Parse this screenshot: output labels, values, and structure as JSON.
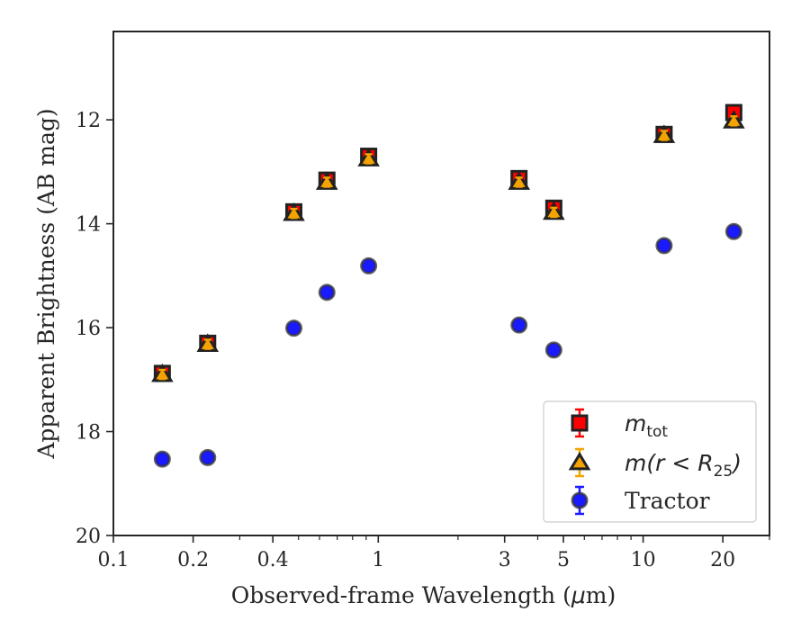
{
  "chart_data": {
    "type": "scatter",
    "xlabel": "Observed-frame Wavelength (μm)",
    "xlabel_parts": [
      "Observed-frame Wavelength (",
      "μ",
      "m)"
    ],
    "ylabel": "Apparent Brightness (AB mag)",
    "xscale": "log",
    "xlim": [
      0.1,
      30
    ],
    "ylim": [
      20,
      10.3
    ],
    "y_inverted": true,
    "x_ticks": [
      {
        "value": 0.1,
        "label": "0.1"
      },
      {
        "value": 0.2,
        "label": "0.2"
      },
      {
        "value": 0.4,
        "label": "0.4"
      },
      {
        "value": 1,
        "label": "1"
      },
      {
        "value": 3,
        "label": "3"
      },
      {
        "value": 5,
        "label": "5"
      },
      {
        "value": 10,
        "label": "10"
      },
      {
        "value": 20,
        "label": "20"
      }
    ],
    "y_ticks": [
      {
        "value": 12,
        "label": "12"
      },
      {
        "value": 14,
        "label": "14"
      },
      {
        "value": 16,
        "label": "16"
      },
      {
        "value": 18,
        "label": "18"
      },
      {
        "value": 20,
        "label": "20"
      }
    ],
    "grid": false,
    "legend_position": "lower-right",
    "series": [
      {
        "key": "mtot",
        "legend_main": "m",
        "legend_sub": "tot",
        "marker": "square",
        "color": "#ff0000",
        "edge": "#222222",
        "error_color": "#ff0000",
        "x": [
          0.153,
          0.227,
          0.48,
          0.64,
          0.92,
          3.4,
          4.6,
          12.0,
          22.0
        ],
        "y": [
          16.88,
          16.3,
          13.77,
          13.16,
          12.7,
          13.13,
          13.7,
          12.28,
          11.86
        ]
      },
      {
        "key": "mR25",
        "legend_main": "m(r < R",
        "legend_sub": "25",
        "legend_tail": ")",
        "marker": "triangle",
        "color": "#f5a300",
        "edge": "#222222",
        "error_color": "#f5a300",
        "x": [
          0.153,
          0.227,
          0.48,
          0.64,
          0.92,
          3.4,
          4.6,
          12.0,
          22.0
        ],
        "y": [
          16.9,
          16.32,
          13.8,
          13.2,
          12.75,
          13.2,
          13.78,
          12.3,
          12.02
        ]
      },
      {
        "key": "tractor",
        "legend_main": "Tractor",
        "marker": "circle",
        "color": "#1a1aff",
        "edge": "#333333",
        "error_color": "#1a1aff",
        "x": [
          0.153,
          0.227,
          0.48,
          0.64,
          0.92,
          3.4,
          4.6,
          12.0,
          22.0
        ],
        "y": [
          18.53,
          18.5,
          16.01,
          15.32,
          14.81,
          15.95,
          16.43,
          14.42,
          14.15
        ]
      }
    ]
  }
}
